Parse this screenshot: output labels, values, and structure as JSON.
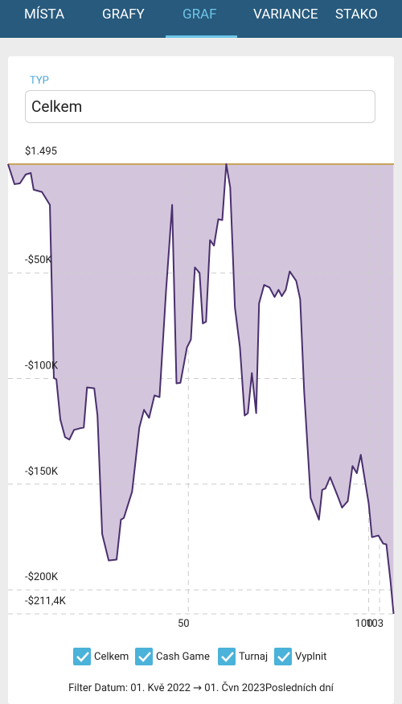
{
  "tabs": [
    "MÍSTA",
    "GRAFY",
    "GRAF",
    "VARIANCE",
    "STAKO"
  ],
  "active_tab": 2,
  "type_field": {
    "label": "TYP",
    "value": "Celkem"
  },
  "chart_data": {
    "type": "line",
    "series": [
      {
        "name": "Celkem",
        "color": "#4a2f6e",
        "fill_color": "#d3c6dc",
        "x": [
          0,
          1.8,
          3.3,
          4.9,
          6.3,
          7.1,
          9.4,
          11.6,
          12.7,
          13.4,
          14.5,
          15.8,
          17,
          18.3,
          20.1,
          21,
          21.9,
          23.9,
          24.8,
          26.1,
          27.9,
          30.1,
          31.3,
          32.1,
          34.4,
          36.4,
          37.7,
          39.1,
          40.6,
          42,
          43.8,
          45.5,
          46.7,
          47.8,
          49.6,
          50.7,
          51.8,
          53.1,
          54,
          54.9,
          56,
          57.1,
          58.3,
          59.4,
          60.5,
          61.6,
          62.9,
          64.3,
          65.6,
          66.5,
          67.6,
          68.8,
          69.6,
          71,
          72.5,
          73.9,
          75,
          75.9,
          77,
          78.1,
          79.9,
          81,
          82.1,
          83.9,
          86.2,
          87.1,
          88,
          89.3,
          91.5,
          92.6,
          94.2,
          95.5,
          96.7,
          97.8,
          100,
          100.9,
          102.7,
          104,
          104.9,
          106,
          106.9
        ],
        "values": [
          1495,
          -8000,
          -7600,
          -3400,
          -2700,
          -10600,
          -11700,
          -17800,
          -99700,
          -100400,
          -119400,
          -127700,
          -128900,
          -124300,
          -123500,
          -123200,
          -104200,
          -104600,
          -117500,
          -173600,
          -186100,
          -185700,
          -166800,
          -166000,
          -153500,
          -123200,
          -114800,
          -118600,
          -108000,
          -108800,
          -58700,
          -17800,
          -102300,
          -102000,
          -85300,
          -81500,
          -47400,
          -50000,
          -73900,
          -73100,
          -34500,
          -37100,
          -24600,
          -25000,
          1495,
          -9500,
          -66300,
          -85300,
          -117500,
          -116400,
          -97400,
          -116400,
          -64400,
          -55700,
          -56900,
          -61400,
          -58000,
          -61000,
          -58000,
          -49300,
          -53800,
          -62500,
          -106100,
          -156500,
          -166800,
          -152700,
          -152000,
          -146700,
          -156100,
          -161100,
          -158000,
          -141400,
          -144800,
          -136100,
          -159200,
          -175100,
          -174300,
          -178100,
          -178500,
          -195200,
          -211400
        ]
      }
    ],
    "top_line_color": "#c9a35a",
    "xlim": [
      0,
      107
    ],
    "xticks": [
      50,
      100,
      103
    ],
    "ylim": [
      -211400,
      1495
    ],
    "yticks": [
      {
        "value": 1495,
        "label": "$1.495"
      },
      {
        "value": -50000,
        "label": "-$50K"
      },
      {
        "value": -100000,
        "label": "-$100K"
      },
      {
        "value": -150000,
        "label": "-$150K"
      },
      {
        "value": -200000,
        "label": "-$200K"
      },
      {
        "value": -211400,
        "label": "-$211,4K"
      }
    ],
    "grid": true,
    "legend": [
      {
        "label": "Celkem",
        "color": "#222222"
      },
      {
        "label": "Cash Game",
        "color": "#8a5fb0"
      },
      {
        "label": "Turnaj",
        "color": "#c9a35a"
      },
      {
        "label": "Vyplnit",
        "color": "#222222"
      }
    ]
  },
  "footer": "Filter Datum: 01. Kvě 2022 → 01. Čvn 2023Posledních dní"
}
